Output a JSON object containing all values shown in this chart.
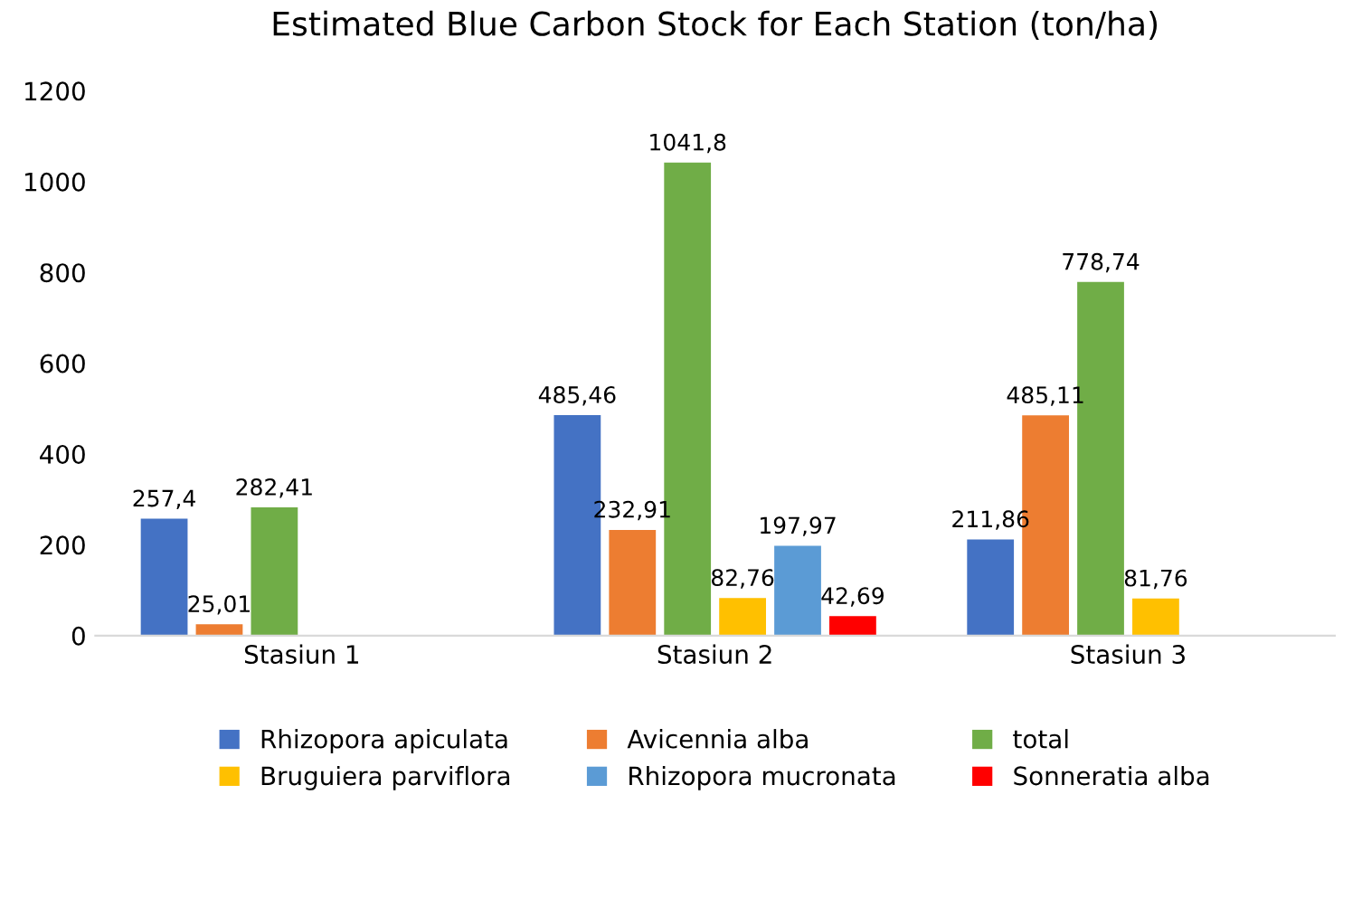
{
  "chart_data": {
    "type": "bar",
    "title": "Estimated Blue Carbon Stock for Each Station (ton/ha)",
    "categories": [
      "Stasiun 1",
      "Stasiun 2",
      "Stasiun 3"
    ],
    "series": [
      {
        "name": "Rhizopora apiculata",
        "color": "#4472c4",
        "values": [
          257.4,
          485.46,
          211.86
        ],
        "value_labels": [
          "257,4",
          "485,46",
          "211,86"
        ]
      },
      {
        "name": "Avicennia alba",
        "color": "#ed7d31",
        "values": [
          25.01,
          232.91,
          485.11
        ],
        "value_labels": [
          "25,01",
          "232,91",
          "485,11"
        ]
      },
      {
        "name": "total",
        "color": "#70ad47",
        "values": [
          282.41,
          1041.8,
          778.74
        ],
        "value_labels": [
          "282,41",
          "1041,8",
          "778,74"
        ]
      },
      {
        "name": "Bruguiera parviflora",
        "color": "#ffc000",
        "values": [
          null,
          82.76,
          81.76
        ],
        "value_labels": [
          null,
          "82,76",
          "81,76"
        ]
      },
      {
        "name": "Rhizopora mucronata",
        "color": "#5b9bd5",
        "values": [
          null,
          197.97,
          null
        ],
        "value_labels": [
          null,
          "197,97",
          null
        ]
      },
      {
        "name": "Sonneratia alba",
        "color": "#ff0000",
        "values": [
          null,
          42.69,
          null
        ],
        "value_labels": [
          null,
          "42,69",
          null
        ]
      }
    ],
    "ylim": [
      0,
      1200
    ],
    "yticks": [
      0,
      200,
      400,
      600,
      800,
      1000,
      1200
    ],
    "grid": false,
    "legend": "bottom"
  }
}
